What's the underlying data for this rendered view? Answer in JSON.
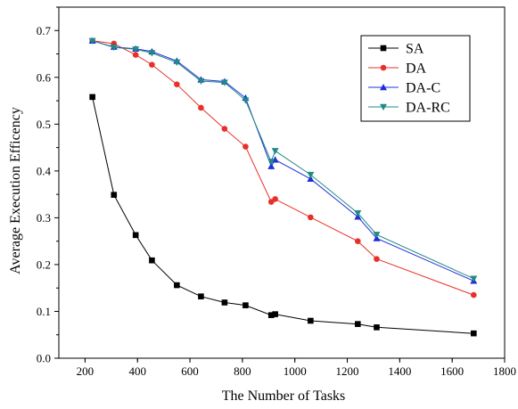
{
  "chart_data": {
    "type": "line",
    "xlabel": "The Number of Tasks",
    "ylabel": "Average Execution Efficency",
    "xlim": [
      100,
      1800
    ],
    "ylim": [
      0.0,
      0.75
    ],
    "xticks": [
      200,
      400,
      600,
      800,
      1000,
      1200,
      1400,
      1600,
      1800
    ],
    "yticks": [
      0.0,
      0.1,
      0.2,
      0.3,
      0.4,
      0.5,
      0.6,
      0.7
    ],
    "x_tick_labels": [
      "200",
      "400",
      "600",
      "800",
      "1000",
      "1200",
      "1400",
      "1600",
      "1800"
    ],
    "y_tick_labels": [
      "0.0",
      "0.1",
      "0.2",
      "0.3",
      "0.4",
      "0.5",
      "0.6",
      "0.7"
    ],
    "grid": false,
    "legend_position": "top-right",
    "series": [
      {
        "name": "SA",
        "color": "#000000",
        "marker": "square",
        "x": [
          228,
          310,
          393,
          455,
          550,
          642,
          732,
          812,
          910,
          925,
          1060,
          1240,
          1312,
          1682
        ],
        "y": [
          0.558,
          0.349,
          0.263,
          0.209,
          0.156,
          0.132,
          0.119,
          0.113,
          0.092,
          0.094,
          0.08,
          0.073,
          0.066,
          0.053
        ]
      },
      {
        "name": "DA",
        "color": "#e8302a",
        "marker": "circle",
        "x": [
          228,
          310,
          393,
          455,
          550,
          642,
          732,
          812,
          910,
          925,
          1060,
          1240,
          1312,
          1682
        ],
        "y": [
          0.678,
          0.672,
          0.648,
          0.627,
          0.585,
          0.535,
          0.49,
          0.452,
          0.334,
          0.34,
          0.301,
          0.25,
          0.212,
          0.135
        ]
      },
      {
        "name": "DA-C",
        "color": "#1f2fd8",
        "marker": "triangle-up",
        "x": [
          228,
          310,
          393,
          455,
          550,
          642,
          732,
          812,
          910,
          925,
          1060,
          1240,
          1312,
          1682
        ],
        "y": [
          0.678,
          0.665,
          0.661,
          0.655,
          0.635,
          0.595,
          0.591,
          0.556,
          0.41,
          0.424,
          0.383,
          0.302,
          0.256,
          0.165
        ]
      },
      {
        "name": "DA-RC",
        "color": "#1f8a86",
        "marker": "triangle-down",
        "x": [
          228,
          310,
          393,
          455,
          550,
          642,
          732,
          812,
          910,
          925,
          1060,
          1240,
          1312,
          1682
        ],
        "y": [
          0.678,
          0.664,
          0.66,
          0.652,
          0.632,
          0.592,
          0.589,
          0.551,
          0.42,
          0.443,
          0.392,
          0.31,
          0.264,
          0.17
        ]
      }
    ]
  }
}
